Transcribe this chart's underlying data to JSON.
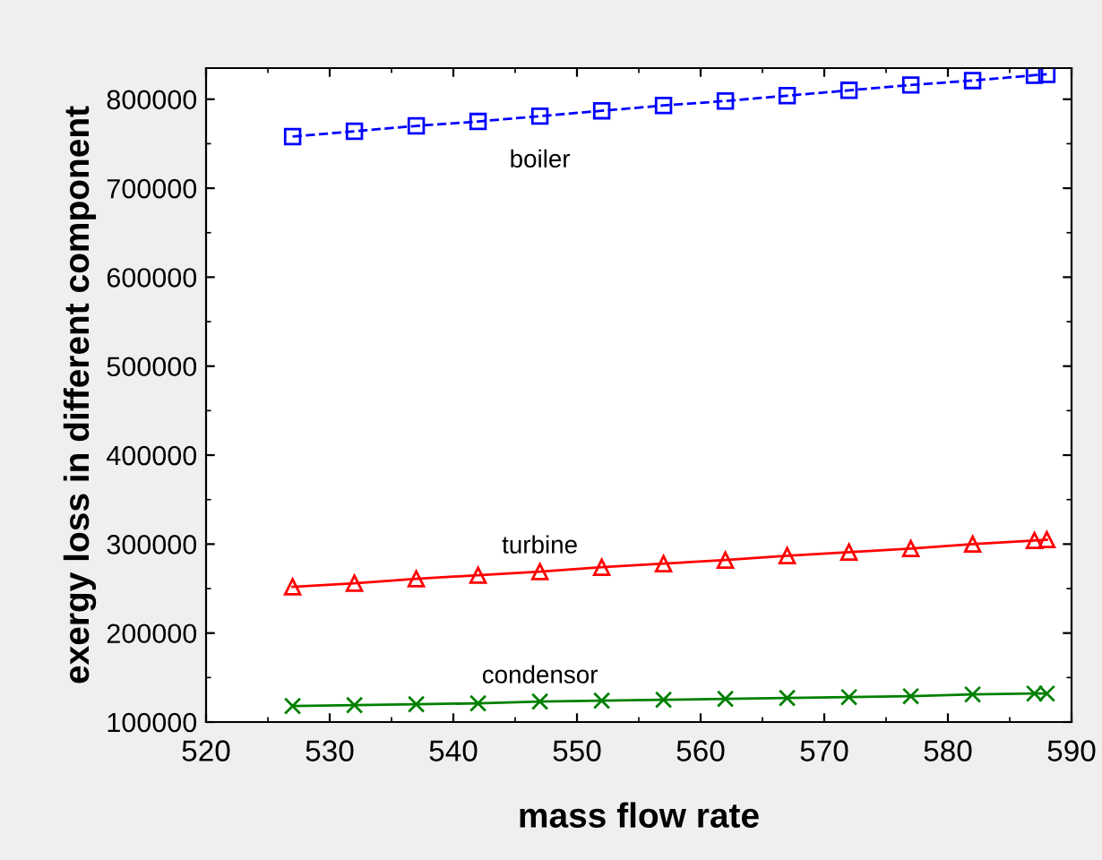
{
  "chart_data": {
    "type": "line",
    "xlabel": "mass flow rate",
    "ylabel": "exergy loss in different component",
    "x": [
      527,
      532,
      537,
      542,
      547,
      552,
      557,
      562,
      567,
      572,
      577,
      582,
      587,
      588
    ],
    "series": [
      {
        "name": "boiler",
        "color": "#0000ff",
        "marker": "square",
        "line_style": "dashed",
        "values": [
          758000,
          764000,
          770000,
          775000,
          781000,
          787000,
          793000,
          798000,
          804000,
          810000,
          816000,
          821000,
          827000,
          828000
        ]
      },
      {
        "name": "turbine",
        "color": "#ff0000",
        "marker": "triangle",
        "line_style": "solid",
        "values": [
          252000,
          256000,
          261000,
          265000,
          269000,
          274000,
          278000,
          282000,
          287000,
          291000,
          295000,
          300000,
          304000,
          305000
        ]
      },
      {
        "name": "condensor",
        "color": "#008000",
        "marker": "cross",
        "line_style": "solid",
        "values": [
          118000,
          119000,
          120000,
          121000,
          123000,
          124000,
          125000,
          126000,
          127000,
          128000,
          129000,
          131000,
          132000,
          132000
        ]
      }
    ],
    "xlim": [
      520,
      590
    ],
    "xticks": [
      520,
      530,
      540,
      550,
      560,
      570,
      580,
      590
    ],
    "ylim": [
      100000,
      835000
    ],
    "yticks": [
      100000,
      200000,
      300000,
      400000,
      500000,
      600000,
      700000,
      800000
    ],
    "grid": false,
    "legend": false
  }
}
